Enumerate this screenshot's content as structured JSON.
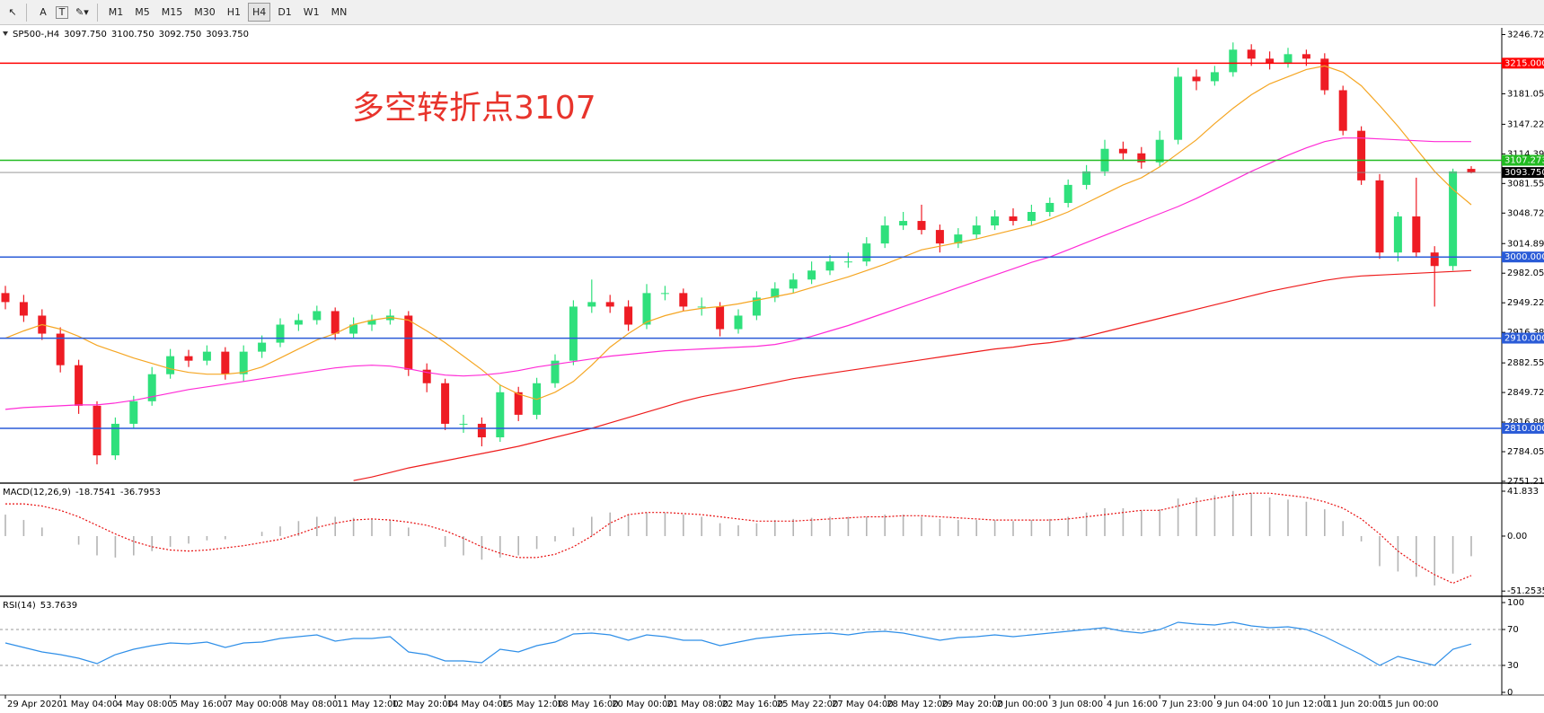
{
  "toolbar": {
    "tools": [
      "A",
      "T"
    ],
    "timeframes": [
      "M1",
      "M5",
      "M15",
      "M30",
      "H1",
      "H4",
      "D1",
      "W1",
      "MN"
    ],
    "active": "H4"
  },
  "chart_data": [
    {
      "type": "candlestick",
      "symbol": "SP500-,H4",
      "ohlc_labels": [
        "3097.750",
        "3100.750",
        "3092.750",
        "3093.750"
      ],
      "annotation": "多空转折点3107",
      "annotation_color": "#e8342c",
      "categories": [
        "29 Apr 2020",
        null,
        null,
        "1 May 04:00",
        null,
        null,
        "4 May 08:00",
        null,
        null,
        "5 May 16:00",
        null,
        null,
        "7 May 00:00",
        null,
        null,
        "8 May 08:00",
        null,
        null,
        "11 May 12:00",
        null,
        null,
        "12 May 20:00",
        null,
        null,
        "14 May 04:00",
        null,
        null,
        "15 May 12:00",
        null,
        null,
        "18 May 16:00",
        null,
        null,
        "20 May 00:00",
        null,
        null,
        "21 May 08:00",
        null,
        null,
        "22 May 16:00",
        null,
        null,
        "25 May 22:00",
        null,
        null,
        "27 May 04:00",
        null,
        null,
        "28 May 12:00",
        null,
        null,
        "29 May 20:00",
        null,
        null,
        "2 Jun 00:00",
        null,
        null,
        "3 Jun 08:00",
        null,
        null,
        "4 Jun 16:00",
        null,
        null,
        "7 Jun 23:00",
        null,
        null,
        "9 Jun 04:00",
        null,
        null,
        "10 Jun 12:00",
        null,
        null,
        "11 Jun 20:00",
        null,
        null,
        "15 Jun 00:00",
        null,
        null,
        null,
        null,
        null
      ],
      "open": [
        2960,
        2950,
        2935,
        2915,
        2880,
        2835,
        2780,
        2815,
        2840,
        2870,
        2890,
        2885,
        2895,
        2870,
        2895,
        2905,
        2925,
        2930,
        2940,
        2915,
        2925,
        2930,
        2935,
        2875,
        2860,
        2815,
        2815,
        2800,
        2850,
        2825,
        2860,
        2885,
        2945,
        2950,
        2945,
        2925,
        2960,
        2960,
        2945,
        2945,
        2920,
        2935,
        2955,
        2965,
        2975,
        2985,
        2995,
        2995,
        3015,
        3035,
        3040,
        3030,
        3015,
        3025,
        3035,
        3045,
        3040,
        3050,
        3060,
        3080,
        3095,
        3120,
        3115,
        3105,
        3130,
        3200,
        3195,
        3205,
        3230,
        3220,
        3215,
        3225,
        3220,
        3185,
        3140,
        3085,
        3005,
        3045,
        3005,
        2990,
        3097.75
      ],
      "high": [
        2968,
        2958,
        2942,
        2922,
        2886,
        2840,
        2822,
        2846,
        2878,
        2898,
        2897,
        2902,
        2900,
        2902,
        2913,
        2932,
        2937,
        2946,
        2944,
        2933,
        2936,
        2942,
        2940,
        2882,
        2865,
        2825,
        2822,
        2858,
        2856,
        2866,
        2892,
        2952,
        2975,
        2958,
        2952,
        2970,
        2968,
        2965,
        2955,
        2950,
        2942,
        2962,
        2972,
        2982,
        2995,
        3002,
        3005,
        3022,
        3045,
        3050,
        3058,
        3036,
        3032,
        3045,
        3052,
        3054,
        3058,
        3066,
        3086,
        3102,
        3130,
        3128,
        3122,
        3140,
        3210,
        3208,
        3212,
        3238,
        3236,
        3228,
        3232,
        3230,
        3226,
        3190,
        3145,
        3092,
        3050,
        3088,
        3012,
        3098,
        3100.75
      ],
      "low": [
        2942,
        2928,
        2908,
        2872,
        2826,
        2770,
        2775,
        2810,
        2835,
        2865,
        2878,
        2880,
        2864,
        2862,
        2888,
        2900,
        2918,
        2925,
        2908,
        2910,
        2918,
        2925,
        2868,
        2850,
        2808,
        2805,
        2790,
        2795,
        2818,
        2820,
        2855,
        2880,
        2938,
        2938,
        2918,
        2920,
        2952,
        2940,
        2935,
        2912,
        2915,
        2930,
        2950,
        2960,
        2970,
        2980,
        2988,
        2990,
        3010,
        3030,
        3025,
        3005,
        3010,
        3020,
        3030,
        3035,
        3035,
        3045,
        3055,
        3075,
        3090,
        3108,
        3098,
        3100,
        3125,
        3185,
        3190,
        3200,
        3212,
        3208,
        3210,
        3212,
        3180,
        3135,
        3080,
        2998,
        2995,
        3000,
        2945,
        2985,
        3092.75
      ],
      "close": [
        2950,
        2935,
        2915,
        2880,
        2835,
        2780,
        2815,
        2840,
        2870,
        2890,
        2885,
        2895,
        2870,
        2895,
        2905,
        2925,
        2930,
        2940,
        2915,
        2925,
        2930,
        2935,
        2875,
        2860,
        2815,
        2815,
        2800,
        2850,
        2825,
        2860,
        2885,
        2945,
        2950,
        2945,
        2925,
        2960,
        2960,
        2945,
        2945,
        2920,
        2935,
        2955,
        2965,
        2975,
        2985,
        2995,
        2995,
        3015,
        3035,
        3040,
        3030,
        3015,
        3025,
        3035,
        3045,
        3040,
        3050,
        3060,
        3080,
        3095,
        3120,
        3115,
        3105,
        3130,
        3200,
        3195,
        3205,
        3230,
        3220,
        3215,
        3225,
        3220,
        3185,
        3140,
        3085,
        3005,
        3045,
        3005,
        2990,
        3095,
        3093.75
      ],
      "up_color": "#2fe07c",
      "down_color": "#ee1c24",
      "series": [
        {
          "color": "#f5a623",
          "values": [
            2910,
            2918,
            2925,
            2920,
            2912,
            2902,
            2895,
            2888,
            2882,
            2876,
            2872,
            2870,
            2870,
            2872,
            2878,
            2888,
            2898,
            2908,
            2915,
            2925,
            2930,
            2933,
            2930,
            2918,
            2905,
            2890,
            2875,
            2858,
            2848,
            2842,
            2850,
            2862,
            2880,
            2900,
            2915,
            2928,
            2935,
            2940,
            2943,
            2945,
            2948,
            2952,
            2956,
            2960,
            2966,
            2972,
            2978,
            2985,
            2992,
            3000,
            3008,
            3012,
            3016,
            3020,
            3025,
            3030,
            3035,
            3042,
            3050,
            3060,
            3070,
            3080,
            3088,
            3100,
            3115,
            3130,
            3148,
            3165,
            3180,
            3192,
            3200,
            3208,
            3212,
            3205,
            3190,
            3168,
            3145,
            3120,
            3095,
            3075,
            3058
          ]
        },
        {
          "color": "#ff2bd6",
          "values": [
            2831,
            2833,
            2834,
            2835,
            2836,
            2836,
            2838,
            2841,
            2845,
            2849,
            2853,
            2856,
            2859,
            2862,
            2865,
            2868,
            2871,
            2874,
            2877,
            2879,
            2880,
            2879,
            2876,
            2872,
            2869,
            2868,
            2869,
            2871,
            2874,
            2878,
            2881,
            2884,
            2887,
            2890,
            2892,
            2894,
            2896,
            2897,
            2898,
            2899,
            2900,
            2901,
            2903,
            2907,
            2912,
            2918,
            2924,
            2931,
            2938,
            2945,
            2952,
            2959,
            2966,
            2973,
            2980,
            2987,
            2994,
            3000,
            3008,
            3016,
            3024,
            3032,
            3040,
            3048,
            3056,
            3065,
            3075,
            3085,
            3095,
            3104,
            3113,
            3121,
            3128,
            3132,
            3132,
            3131,
            3130,
            3129,
            3128,
            3128,
            3128
          ]
        },
        {
          "color": "#ee1c1c",
          "values": [
            null,
            null,
            null,
            null,
            null,
            null,
            null,
            null,
            null,
            null,
            null,
            null,
            null,
            null,
            null,
            null,
            null,
            null,
            null,
            2752,
            2756,
            2761,
            2766,
            2770,
            2774,
            2778,
            2782,
            2786,
            2790,
            2795,
            2800,
            2805,
            2810,
            2816,
            2822,
            2828,
            2834,
            2840,
            2845,
            2849,
            2853,
            2857,
            2861,
            2865,
            2868,
            2871,
            2874,
            2877,
            2880,
            2883,
            2886,
            2889,
            2892,
            2895,
            2898,
            2900,
            2903,
            2905,
            2908,
            2912,
            2917,
            2922,
            2927,
            2932,
            2937,
            2942,
            2947,
            2952,
            2957,
            2962,
            2966,
            2970,
            2974,
            2977,
            2979,
            2980,
            2981,
            2982,
            2983,
            2984,
            2985
          ]
        }
      ],
      "ylim": [
        2749.2,
        3254.2
      ],
      "yticks": [
        3246.725,
        3181.055,
        {
          "value": 3147.22,
          "label": "3147.220"
        },
        {
          "value": 3114.39,
          "label": "3114.390"
        },
        3081.555,
        {
          "value": 3048.72,
          "label": "3048.720"
        },
        {
          "value": 3014.89,
          "label": "3014.890"
        },
        2982.055,
        {
          "value": 2949.22,
          "label": "2949.220"
        },
        2916.385,
        2882.555,
        {
          "value": 2849.72,
          "label": "2849.720"
        },
        2816.885,
        {
          "value": 2784.05,
          "label": "2784.050"
        },
        2751.215
      ],
      "hlines": [
        {
          "value": 3215,
          "label": "3215.000",
          "color": "#ff0000"
        },
        {
          "value": 3107.273,
          "label": "3107.273",
          "color": "#22bb22"
        },
        {
          "value": 3000,
          "label": "3000.000",
          "color": "#2a5bd7"
        },
        {
          "value": 2910,
          "label": "2910.000",
          "color": "#2a5bd7"
        },
        {
          "value": 2810,
          "label": "2810.000",
          "color": "#2a5bd7"
        }
      ],
      "current_price": {
        "value": 3093.75,
        "label": "3093.750",
        "color": "#000000"
      }
    },
    {
      "type": "macd",
      "title": "MACD(12,26,9)",
      "color": "#b4b4b4",
      "signal_color": "#e81010",
      "values": [
        20,
        15,
        8,
        0,
        -8,
        -18,
        -20,
        -18,
        -14,
        -10,
        -7,
        -4,
        -3,
        0,
        4,
        9,
        14,
        18,
        18,
        17,
        16,
        15,
        8,
        0,
        -10,
        -18,
        -22,
        -20,
        -18,
        -12,
        -5,
        8,
        18,
        22,
        20,
        22,
        22,
        20,
        18,
        12,
        10,
        12,
        15,
        16,
        17,
        18,
        18,
        18,
        20,
        20,
        18,
        16,
        15,
        15,
        15,
        14,
        15,
        16,
        18,
        22,
        26,
        26,
        24,
        25,
        35,
        36,
        38,
        42,
        40,
        36,
        34,
        32,
        25,
        14,
        -5,
        -28,
        -33,
        -38,
        -46,
        -35,
        -18.7541
      ],
      "signal": [
        30,
        30,
        28,
        24,
        18,
        10,
        2,
        -5,
        -10,
        -13,
        -14,
        -13,
        -11,
        -9,
        -6,
        -3,
        2,
        8,
        12,
        15,
        16,
        15,
        13,
        10,
        5,
        -2,
        -10,
        -16,
        -20,
        -20,
        -17,
        -10,
        0,
        12,
        20,
        22,
        22,
        21,
        20,
        18,
        16,
        14,
        14,
        14,
        15,
        16,
        17,
        18,
        18,
        19,
        19,
        18,
        17,
        16,
        15,
        15,
        15,
        15,
        16,
        18,
        20,
        22,
        24,
        24,
        28,
        32,
        35,
        38,
        40,
        40,
        38,
        36,
        32,
        26,
        16,
        2,
        -14,
        -26,
        -36,
        -44,
        -36.7953
      ],
      "ylim": [
        -56.1,
        47.7
      ],
      "yticks": [
        41.833,
        {
          "value": 0,
          "label": "0.00"
        },
        -51.2535
      ]
    },
    {
      "type": "line",
      "title": "RSI(14)",
      "color": "#2f8fe8",
      "values": [
        55,
        50,
        45,
        42,
        38,
        32,
        42,
        48,
        52,
        55,
        54,
        56,
        50,
        55,
        56,
        60,
        62,
        64,
        57,
        60,
        60,
        62,
        45,
        42,
        35,
        35,
        33,
        48,
        45,
        52,
        56,
        65,
        66,
        64,
        58,
        64,
        62,
        58,
        58,
        52,
        56,
        60,
        62,
        64,
        65,
        66,
        64,
        67,
        68,
        66,
        62,
        58,
        61,
        62,
        64,
        62,
        64,
        66,
        68,
        70,
        72,
        68,
        66,
        70,
        78,
        76,
        75,
        78,
        74,
        72,
        73,
        70,
        62,
        52,
        42,
        30,
        40,
        35,
        30,
        48,
        53.7639
      ],
      "ylim": [
        -3,
        105
      ],
      "yticks": [
        100,
        70,
        30,
        0
      ],
      "levels": [
        70,
        30
      ]
    }
  ]
}
